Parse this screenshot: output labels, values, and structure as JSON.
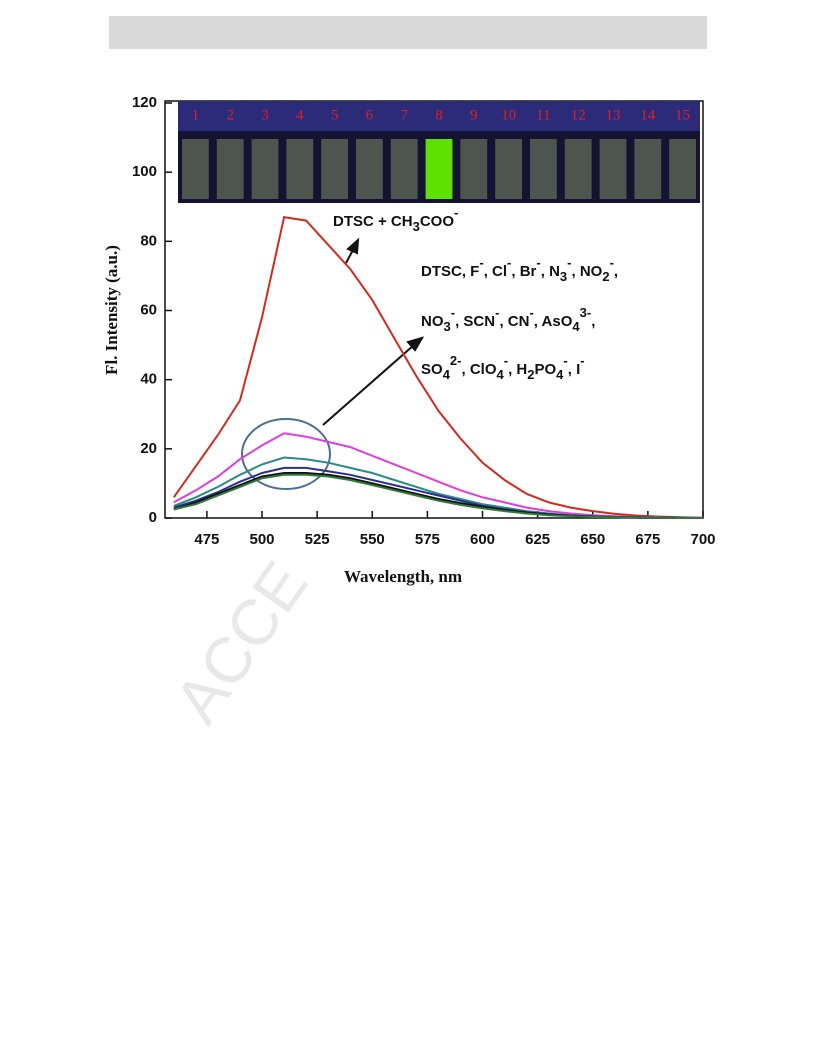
{
  "chart_data": {
    "type": "line",
    "xlabel": "Wavelength, nm",
    "ylabel": "Fl. Intensity (a.u.)",
    "x": [
      460,
      470,
      480,
      490,
      500,
      510,
      520,
      530,
      540,
      550,
      560,
      570,
      580,
      590,
      600,
      610,
      620,
      630,
      640,
      650,
      660,
      670,
      680,
      690,
      700
    ],
    "series": [
      {
        "color": "#d42a1e",
        "values": [
          6,
          15,
          24,
          34,
          58,
          87,
          86,
          79,
          72,
          63,
          52,
          41,
          31,
          23,
          16,
          11,
          7,
          4.5,
          3,
          2,
          1.2,
          0.7,
          0.4,
          0.2,
          0.1
        ]
      },
      {
        "color": "#e23be0",
        "values": [
          4.5,
          8,
          12,
          17,
          21,
          24.5,
          23.5,
          22,
          20.5,
          18,
          15.5,
          13,
          10.5,
          8,
          6,
          4.5,
          3,
          2,
          1.3,
          0.8,
          0.5,
          0.3,
          0.2,
          0.1,
          0.1
        ]
      },
      {
        "color": "#2a8a86",
        "values": [
          3.5,
          6,
          9,
          12.5,
          15.5,
          17.5,
          17,
          16,
          14.5,
          13,
          11,
          9,
          7,
          5.5,
          4,
          3,
          2,
          1.3,
          0.8,
          0.5,
          0.3,
          0.2,
          0.1,
          0.1,
          0
        ]
      },
      {
        "color": "#2b2f8f",
        "values": [
          3,
          5,
          7.5,
          10.5,
          13,
          14.5,
          14.5,
          13.5,
          12.5,
          11,
          9.5,
          8,
          6.5,
          5,
          3.5,
          2.5,
          1.7,
          1.1,
          0.7,
          0.4,
          0.3,
          0.2,
          0.1,
          0.1,
          0
        ]
      },
      {
        "color": "#111111",
        "values": [
          2.5,
          4.5,
          7,
          9.5,
          12,
          13,
          13,
          12.5,
          11.5,
          10,
          8.5,
          7,
          5.5,
          4.3,
          3.2,
          2.3,
          1.5,
          1,
          0.6,
          0.4,
          0.2,
          0.1,
          0.1,
          0,
          0
        ]
      },
      {
        "color": "#2f7a3a",
        "values": [
          2.5,
          4,
          6.5,
          9,
          11.5,
          12.5,
          12.5,
          12,
          11,
          9.5,
          8,
          6.5,
          5,
          3.8,
          2.8,
          2,
          1.3,
          0.8,
          0.5,
          0.3,
          0.2,
          0.1,
          0.1,
          0,
          0
        ]
      }
    ],
    "xlim": [
      456,
      700
    ],
    "xticks": [
      475,
      500,
      525,
      550,
      575,
      600,
      625,
      650,
      675,
      700
    ],
    "ylim": [
      0,
      120
    ],
    "yticks": [
      0,
      20,
      40,
      60,
      80,
      100,
      120
    ],
    "annotations": [
      {
        "parts": [
          {
            "text": "DTSC + CH"
          },
          {
            "text": "3",
            "shift": "sub"
          },
          {
            "text": "COO"
          },
          {
            "text": "-",
            "shift": "super"
          }
        ]
      },
      {
        "parts": [
          {
            "text": "DTSC, F"
          },
          {
            "text": "-",
            "shift": "super"
          },
          {
            "text": ", Cl"
          },
          {
            "text": "-",
            "shift": "super"
          },
          {
            "text": ", Br"
          },
          {
            "text": "-",
            "shift": "super"
          },
          {
            "text": ", N"
          },
          {
            "text": "3",
            "shift": "sub"
          },
          {
            "text": "-",
            "shift": "super"
          },
          {
            "text": ",  NO"
          },
          {
            "text": "2",
            "shift": "sub"
          },
          {
            "text": "-",
            "shift": "super"
          },
          {
            "text": ","
          }
        ]
      },
      {
        "parts": [
          {
            "text": "NO"
          },
          {
            "text": "3",
            "shift": "sub"
          },
          {
            "text": "-",
            "shift": "super"
          },
          {
            "text": ", SCN"
          },
          {
            "text": "-",
            "shift": "super"
          },
          {
            "text": ", CN"
          },
          {
            "text": "-",
            "shift": "super"
          },
          {
            "text": ", AsO"
          },
          {
            "text": "4",
            "shift": "sub"
          },
          {
            "text": "3-",
            "shift": "super"
          },
          {
            "text": ","
          }
        ]
      },
      {
        "parts": [
          {
            "text": "SO"
          },
          {
            "text": "4",
            "shift": "sub"
          },
          {
            "text": "2-",
            "shift": "super"
          },
          {
            "text": ", ClO"
          },
          {
            "text": "4",
            "shift": "sub"
          },
          {
            "text": "-",
            "shift": "super"
          },
          {
            "text": ", H"
          },
          {
            "text": "2",
            "shift": "sub"
          },
          {
            "text": "PO"
          },
          {
            "text": "4",
            "shift": "sub"
          },
          {
            "text": "-",
            "shift": "super"
          },
          {
            "text": ", I"
          },
          {
            "text": "-",
            "shift": "super"
          }
        ]
      }
    ],
    "inset": {
      "labels": [
        "1",
        "2",
        "3",
        "4",
        "5",
        "6",
        "7",
        "8",
        "9",
        "10",
        "11",
        "12",
        "13",
        "14",
        "15"
      ],
      "label_color": "#e02020",
      "vial_color": "#7e8a68",
      "highlight_index": 7,
      "highlight_color": "#5ee000"
    }
  },
  "watermark": "ACCE"
}
